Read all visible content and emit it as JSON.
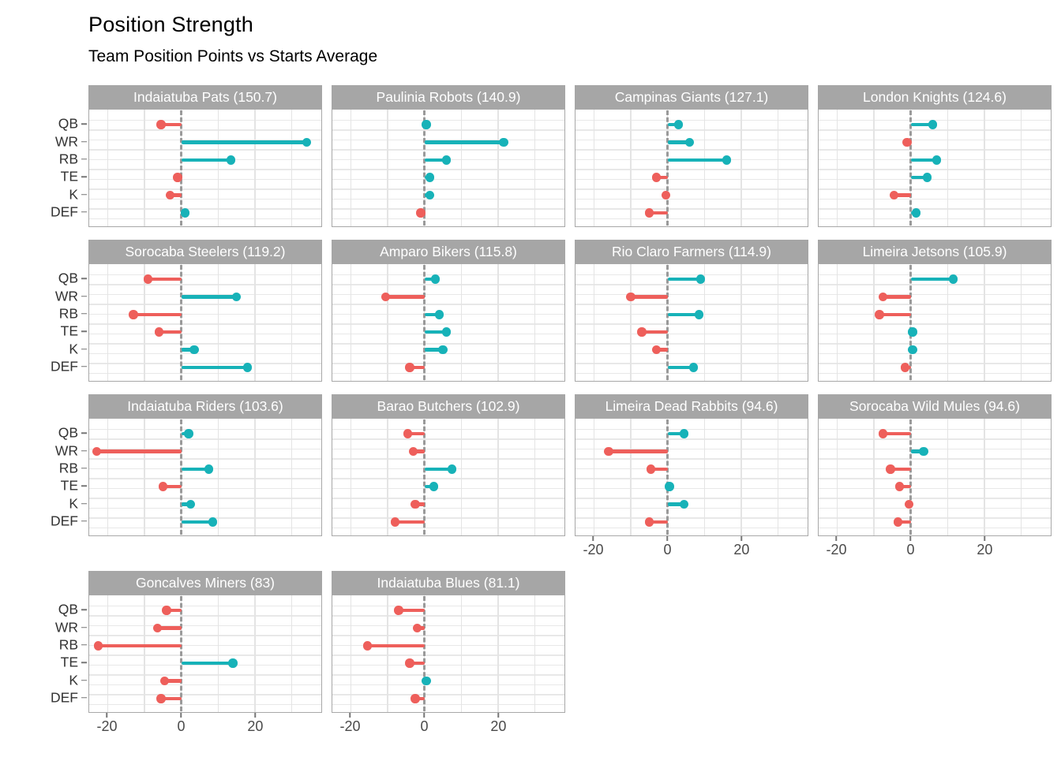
{
  "header": {
    "title": "Position Strength",
    "subtitle": "Team Position Points vs Starts Average"
  },
  "colors": {
    "positive": "#17b2b8",
    "negative": "#ee5f5b",
    "strip_bg": "#a6a6a6",
    "strip_text": "#ffffff",
    "zero_line": "#9a9a9a",
    "gridline": "#e4e4e4",
    "panel_border": "#a8a8a8",
    "axis_text": "#4a4a4a"
  },
  "chart_data": {
    "type": "bar",
    "style": "horizontal-lollipop-small-multiples",
    "title": "Position Strength",
    "subtitle": "Team Position Points vs Starts Average",
    "xlabel": "",
    "ylabel": "",
    "categories": [
      "QB",
      "WR",
      "RB",
      "TE",
      "K",
      "DEF"
    ],
    "xlim": [
      -25,
      38
    ],
    "x_ticks": [
      -20,
      0,
      20
    ],
    "x_gridlines": [
      -20,
      -10,
      0,
      10,
      20,
      30
    ],
    "grid": true,
    "legend": "none",
    "facets": [
      {
        "label": "Indaiatuba Pats (150.7)",
        "team": "Indaiatuba Pats",
        "total": 150.7,
        "values": [
          -5.5,
          34,
          13.5,
          -1,
          -3,
          1
        ]
      },
      {
        "label": "Paulinia Robots (140.9)",
        "team": "Paulinia Robots",
        "total": 140.9,
        "values": [
          0.5,
          21.5,
          6,
          1.5,
          1.5,
          -1
        ]
      },
      {
        "label": "Campinas Giants (127.1)",
        "team": "Campinas Giants",
        "total": 127.1,
        "values": [
          3,
          6,
          16,
          -3,
          -0.5,
          -5
        ]
      },
      {
        "label": "London Knights (124.6)",
        "team": "London Knights",
        "total": 124.6,
        "values": [
          6,
          -1,
          7,
          4.5,
          -4.5,
          1.5
        ]
      },
      {
        "label": "Sorocaba Steelers (119.2)",
        "team": "Sorocaba Steelers",
        "total": 119.2,
        "values": [
          -9,
          15,
          -13,
          -6,
          3.5,
          18
        ]
      },
      {
        "label": "Amparo Bikers (115.8)",
        "team": "Amparo Bikers",
        "total": 115.8,
        "values": [
          3,
          -10.5,
          4,
          6,
          5,
          -4
        ]
      },
      {
        "label": "Rio Claro Farmers (114.9)",
        "team": "Rio Claro Farmers",
        "total": 114.9,
        "values": [
          9,
          -10,
          8.5,
          -7,
          -3,
          7
        ]
      },
      {
        "label": "Limeira Jetsons (105.9)",
        "team": "Limeira Jetsons",
        "total": 105.9,
        "values": [
          11.5,
          -7.5,
          -8.5,
          0.5,
          0.5,
          -1.5
        ]
      },
      {
        "label": "Indaiatuba Riders (103.6)",
        "team": "Indaiatuba Riders",
        "total": 103.6,
        "values": [
          2,
          -23,
          7.5,
          -5,
          2.5,
          8.5
        ]
      },
      {
        "label": "Barao Butchers (102.9)",
        "team": "Barao Butchers",
        "total": 102.9,
        "values": [
          -4.5,
          -3,
          7.5,
          2.5,
          -2.5,
          -8
        ]
      },
      {
        "label": "Limeira Dead Rabbits (94.6)",
        "team": "Limeira Dead Rabbits",
        "total": 94.6,
        "values": [
          4.5,
          -16,
          -4.5,
          0.5,
          4.5,
          -5
        ]
      },
      {
        "label": "Sorocaba Wild Mules (94.6)",
        "team": "Sorocaba Wild Mules",
        "total": 94.6,
        "values": [
          -7.5,
          3.5,
          -5.5,
          -3,
          -0.5,
          -3.5
        ]
      },
      {
        "label": "Goncalves Miners (83)",
        "team": "Goncalves Miners",
        "total": 83,
        "values": [
          -4,
          -6.5,
          -22.5,
          14,
          -4.5,
          -5.5
        ]
      },
      {
        "label": "Indaiatuba Blues (81.1)",
        "team": "Indaiatuba Blues",
        "total": 81.1,
        "values": [
          -7,
          -2,
          -15.5,
          -4,
          0.5,
          -2.5
        ]
      }
    ]
  }
}
